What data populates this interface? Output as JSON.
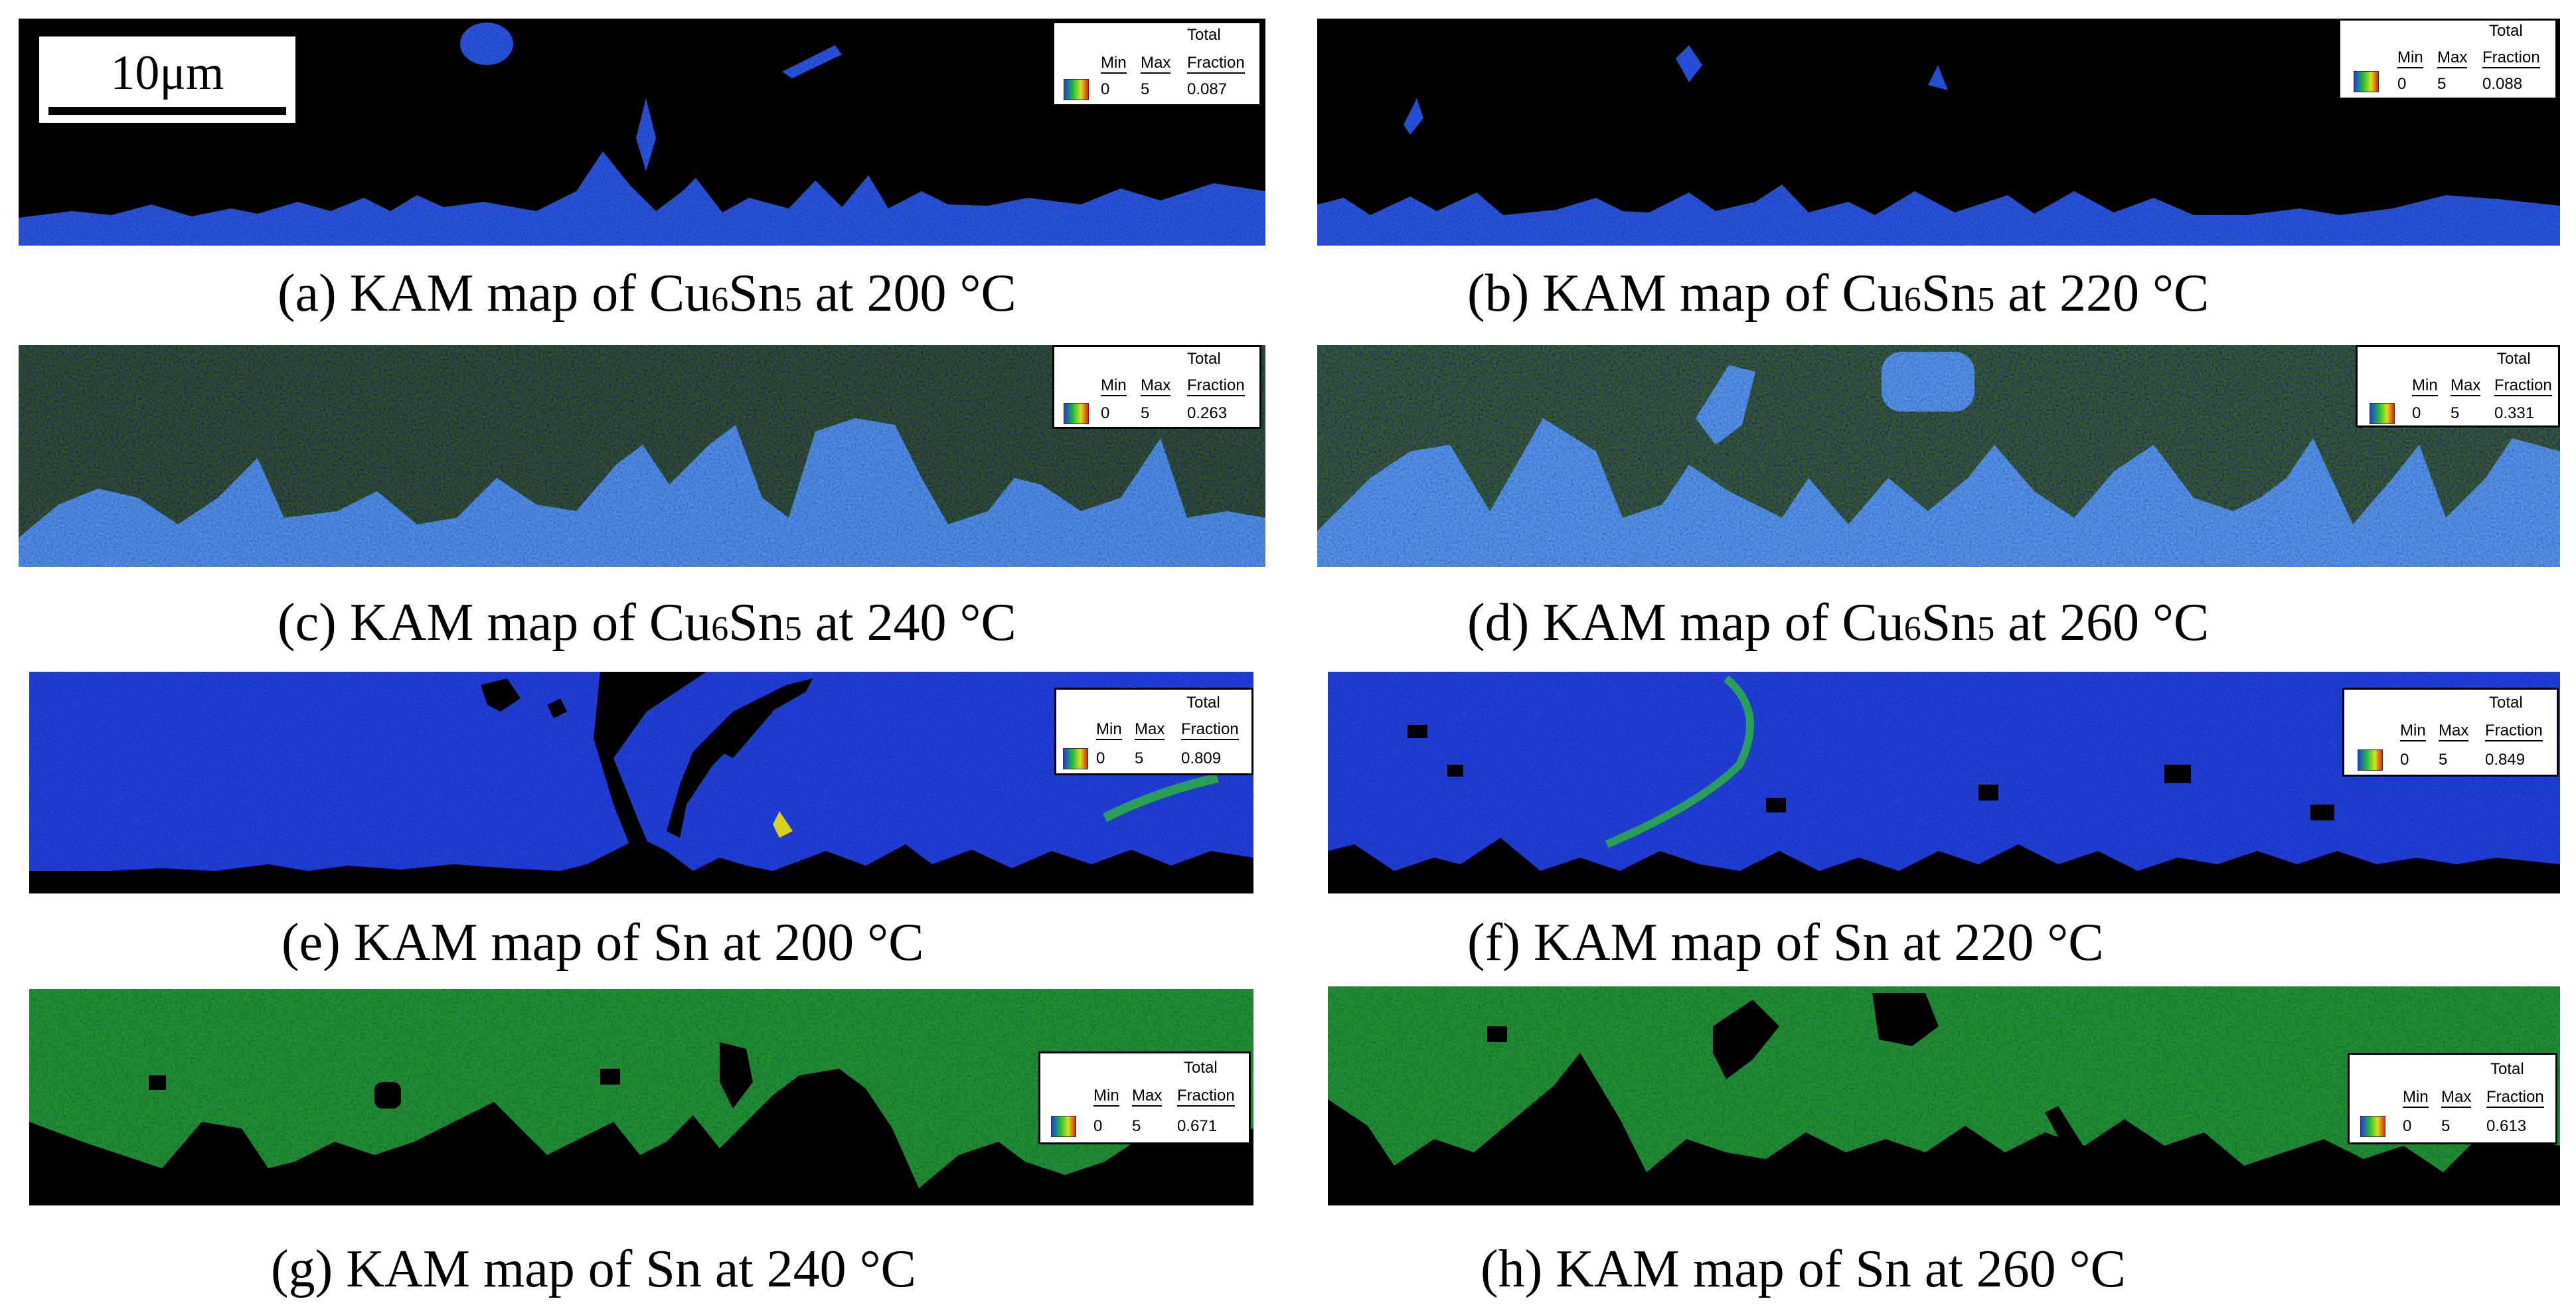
{
  "scale_bar": {
    "label": "10μm"
  },
  "legend_labels": {
    "min": "Min",
    "max": "Max",
    "total": "Total",
    "fraction": "Fraction"
  },
  "colors": {
    "low": "#1f3fd8",
    "mid": "#1fb83a",
    "high": "#d8e01a",
    "max": "#e82020",
    "background": "#000000"
  },
  "panels": [
    {
      "id": "a",
      "prefix": "(a) KAM map of Cu",
      "sub1": "6",
      "mid": "Sn",
      "sub2": "5",
      "suffix": " at 200 °C",
      "min": "0",
      "max": "5",
      "fraction": "0.087"
    },
    {
      "id": "b",
      "prefix": "(b) KAM map of Cu",
      "sub1": "6",
      "mid": "Sn",
      "sub2": "5",
      "suffix": " at 220 °C",
      "min": "0",
      "max": "5",
      "fraction": "0.088"
    },
    {
      "id": "c",
      "prefix": "(c) KAM map of Cu",
      "sub1": "6",
      "mid": "Sn",
      "sub2": "5",
      "suffix": " at 240 °C",
      "min": "0",
      "max": "5",
      "fraction": "0.263"
    },
    {
      "id": "d",
      "prefix": "(d) KAM map of Cu",
      "sub1": "6",
      "mid": "Sn",
      "sub2": "5",
      "suffix": " at 260 °C",
      "min": "0",
      "max": "5",
      "fraction": "0.331"
    },
    {
      "id": "e",
      "caption": "(e) KAM map of Sn at 200 °C",
      "min": "0",
      "max": "5",
      "fraction": "0.809"
    },
    {
      "id": "f",
      "caption": "(f) KAM map of Sn at 220 °C",
      "min": "0",
      "max": "5",
      "fraction": "0.849"
    },
    {
      "id": "g",
      "caption": "(g) KAM map of Sn at 240 °C",
      "min": "0",
      "max": "5",
      "fraction": "0.671"
    },
    {
      "id": "h",
      "caption": "(h) KAM map of Sn at 260 °C",
      "min": "0",
      "max": "5",
      "fraction": "0.613"
    }
  ]
}
